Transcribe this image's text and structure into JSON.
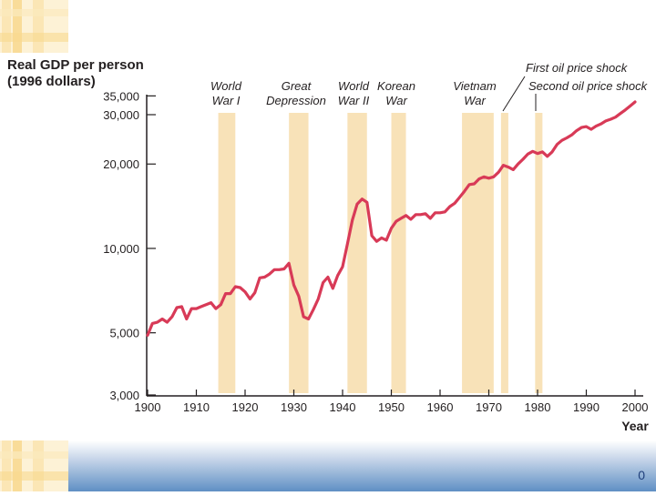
{
  "slide": {
    "page_number": "0"
  },
  "colors": {
    "line": "#d83a57",
    "band": "#f8e2b8",
    "axis": "#231f20",
    "footer": "#5f8fc4",
    "deco": "#f6d78e"
  },
  "chart_data": {
    "type": "line",
    "title": "",
    "ylabel_line1": "Real GDP per person",
    "ylabel_line2": "(1996 dollars)",
    "xlabel": "Year",
    "y_scale": "log",
    "ylim": [
      3000,
      38000
    ],
    "xlim": [
      1900,
      2000
    ],
    "x_ticks": [
      1900,
      1910,
      1920,
      1930,
      1940,
      1950,
      1960,
      1970,
      1980,
      1990,
      2000
    ],
    "x_tick_labels": [
      "1900",
      "1910",
      "1920",
      "1930",
      "1940",
      "1950",
      "1960",
      "1970",
      "1980",
      "1990",
      "2000"
    ],
    "y_ticks": [
      3000,
      5000,
      10000,
      20000,
      30000,
      35000
    ],
    "y_tick_labels": [
      "3,000",
      "5,000",
      "10,000",
      "20,000",
      "30,000",
      "35,000"
    ],
    "events": [
      {
        "label1": "World",
        "label2": "War I",
        "start": 1914.5,
        "end": 1918
      },
      {
        "label1": "Great",
        "label2": "Depression",
        "start": 1929,
        "end": 1933
      },
      {
        "label1": "World",
        "label2": "War II",
        "start": 1941,
        "end": 1945
      },
      {
        "label1": "Korean",
        "label2": "War",
        "start": 1950,
        "end": 1953
      },
      {
        "label1": "Vietnam",
        "label2": "War",
        "start": 1964.5,
        "end": 1971
      },
      {
        "label1": "First oil price shock",
        "label2": "",
        "start": 1972.5,
        "end": 1974
      },
      {
        "label1": "Second oil price shock",
        "label2": "",
        "start": 1979.5,
        "end": 1981
      }
    ],
    "series": [
      {
        "x": [
          1900,
          1901,
          1902,
          1903,
          1904,
          1905,
          1906,
          1907,
          1908,
          1909,
          1910,
          1911,
          1912,
          1913,
          1914,
          1915,
          1916,
          1917,
          1918,
          1919,
          1920,
          1921,
          1922,
          1923,
          1924,
          1925,
          1926,
          1927,
          1928,
          1929,
          1930,
          1931,
          1932,
          1933,
          1934,
          1935,
          1936,
          1937,
          1938,
          1939,
          1940,
          1941,
          1942,
          1943,
          1944,
          1945,
          1946,
          1947,
          1948,
          1949,
          1950,
          1951,
          1952,
          1953,
          1954,
          1955,
          1956,
          1957,
          1958,
          1959,
          1960,
          1961,
          1962,
          1963,
          1964,
          1965,
          1966,
          1967,
          1968,
          1969,
          1970,
          1971,
          1972,
          1973,
          1974,
          1975,
          1976,
          1977,
          1978,
          1979,
          1980,
          1981,
          1982,
          1983,
          1984,
          1985,
          1986,
          1987,
          1988,
          1989,
          1990,
          1991,
          1992,
          1993,
          1994,
          1995,
          1996,
          1997,
          1998,
          1999,
          2000
        ],
        "values": [
          4900,
          5400,
          5450,
          5600,
          5450,
          5700,
          6150,
          6200,
          5600,
          6100,
          6100,
          6200,
          6300,
          6400,
          6100,
          6300,
          6900,
          6900,
          7300,
          7250,
          7000,
          6600,
          6950,
          7850,
          7900,
          8100,
          8400,
          8400,
          8450,
          8850,
          7400,
          6750,
          5700,
          5600,
          6050,
          6600,
          7550,
          7900,
          7200,
          8000,
          8600,
          10400,
          12600,
          14400,
          15000,
          14600,
          11100,
          10600,
          10900,
          10700,
          11800,
          12500,
          12800,
          13100,
          12700,
          13200,
          13200,
          13300,
          12800,
          13400,
          13400,
          13500,
          14100,
          14500,
          15200,
          16000,
          16900,
          17000,
          17700,
          18000,
          17800,
          18000,
          18700,
          19800,
          19500,
          19100,
          20000,
          20800,
          21700,
          22200,
          21800,
          22100,
          21300,
          22100,
          23500,
          24300,
          24800,
          25400,
          26300,
          27000,
          27200,
          26600,
          27300,
          27800,
          28500,
          28900,
          29400,
          30300,
          31200,
          32200,
          33300
        ]
      }
    ]
  }
}
